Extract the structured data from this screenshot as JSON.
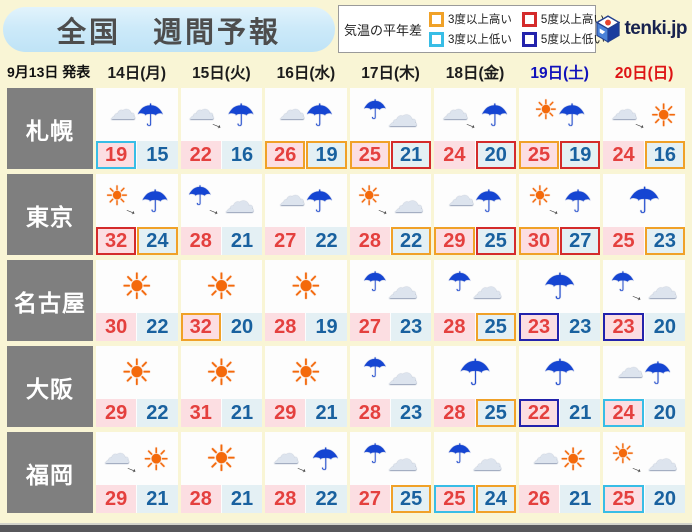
{
  "header": {
    "title": "全国　週間予報",
    "legend": {
      "label": "気温の平年差",
      "items": [
        {
          "label": "3度以上高い",
          "key": "warm3"
        },
        {
          "label": "5度以上高い",
          "key": "warm5"
        },
        {
          "label": "3度以上低い",
          "key": "cold3"
        },
        {
          "label": "5度以上低い",
          "key": "cold5"
        }
      ]
    },
    "logo_text": "tenki.jp"
  },
  "issued": "9月13日 発表",
  "days": [
    {
      "label": "14日(月)",
      "color": "#1c1c1c"
    },
    {
      "label": "15日(火)",
      "color": "#1c1c1c"
    },
    {
      "label": "16日(水)",
      "color": "#1c1c1c"
    },
    {
      "label": "17日(木)",
      "color": "#1c1c1c"
    },
    {
      "label": "18日(金)",
      "color": "#1c1c1c"
    },
    {
      "label": "19日(土)",
      "color": "#1112bb"
    },
    {
      "label": "20日(日)",
      "color": "#de1414"
    }
  ],
  "colors": {
    "warm3": "#f0a128",
    "warm5": "#d42b2b",
    "cold3": "#38bde6",
    "cold5": "#2323ac",
    "high_bg": "#fcdee2",
    "high_text": "#e4403e",
    "low_bg": "#e4f0f4",
    "low_text": "#19619f",
    "page_bg": "#f9f5d5",
    "city_bg": "#7f7f7f",
    "title_bg": "#c6e6f7"
  },
  "icon_glyphs": {
    "sun": "sun-icon",
    "cloud": "cloud-icon",
    "umbrella": "umbrella-icon",
    "arrow": "arrow-icon"
  },
  "cities": [
    {
      "name": "札幌",
      "cells": [
        {
          "icon": [
            "cloud",
            "umbrella"
          ],
          "arrow": false,
          "high": "19",
          "low": "15",
          "high_diff": "cold3",
          "low_diff": null
        },
        {
          "icon": [
            "cloud",
            "umbrella"
          ],
          "arrow": true,
          "high": "22",
          "low": "16",
          "high_diff": null,
          "low_diff": null
        },
        {
          "icon": [
            "cloud",
            "umbrella"
          ],
          "arrow": false,
          "high": "26",
          "low": "19",
          "high_diff": "warm3",
          "low_diff": "warm3"
        },
        {
          "icon": [
            "umbrella",
            "cloud"
          ],
          "arrow": false,
          "high": "25",
          "low": "21",
          "high_diff": "warm3",
          "low_diff": "warm5"
        },
        {
          "icon": [
            "cloud",
            "umbrella"
          ],
          "arrow": true,
          "high": "24",
          "low": "20",
          "high_diff": null,
          "low_diff": "warm5"
        },
        {
          "icon": [
            "sun",
            "umbrella"
          ],
          "arrow": false,
          "high": "25",
          "low": "19",
          "high_diff": "warm3",
          "low_diff": "warm5"
        },
        {
          "icon": [
            "cloud",
            "sun"
          ],
          "arrow": true,
          "high": "24",
          "low": "16",
          "high_diff": null,
          "low_diff": "warm3"
        }
      ]
    },
    {
      "name": "東京",
      "cells": [
        {
          "icon": [
            "sun",
            "umbrella"
          ],
          "arrow": true,
          "high": "32",
          "low": "24",
          "high_diff": "warm5",
          "low_diff": "warm3"
        },
        {
          "icon": [
            "umbrella",
            "cloud"
          ],
          "arrow": true,
          "high": "28",
          "low": "21",
          "high_diff": null,
          "low_diff": null
        },
        {
          "icon": [
            "cloud",
            "umbrella"
          ],
          "arrow": false,
          "high": "27",
          "low": "22",
          "high_diff": null,
          "low_diff": null
        },
        {
          "icon": [
            "sun",
            "cloud"
          ],
          "arrow": true,
          "high": "28",
          "low": "22",
          "high_diff": null,
          "low_diff": "warm3"
        },
        {
          "icon": [
            "cloud",
            "umbrella"
          ],
          "arrow": false,
          "high": "29",
          "low": "25",
          "high_diff": "warm3",
          "low_diff": "warm5"
        },
        {
          "icon": [
            "sun",
            "umbrella"
          ],
          "arrow": true,
          "high": "30",
          "low": "27",
          "high_diff": "warm3",
          "low_diff": "warm5"
        },
        {
          "icon": [
            "umbrella"
          ],
          "arrow": false,
          "high": "25",
          "low": "23",
          "high_diff": null,
          "low_diff": "warm3"
        }
      ]
    },
    {
      "name": "名古屋",
      "cells": [
        {
          "icon": [
            "sun"
          ],
          "arrow": false,
          "high": "30",
          "low": "22",
          "high_diff": null,
          "low_diff": null
        },
        {
          "icon": [
            "sun"
          ],
          "arrow": false,
          "high": "32",
          "low": "20",
          "high_diff": "warm3",
          "low_diff": null
        },
        {
          "icon": [
            "sun"
          ],
          "arrow": false,
          "high": "28",
          "low": "19",
          "high_diff": null,
          "low_diff": null
        },
        {
          "icon": [
            "umbrella",
            "cloud"
          ],
          "arrow": false,
          "high": "27",
          "low": "23",
          "high_diff": null,
          "low_diff": null
        },
        {
          "icon": [
            "umbrella",
            "cloud"
          ],
          "arrow": false,
          "high": "28",
          "low": "25",
          "high_diff": null,
          "low_diff": "warm3"
        },
        {
          "icon": [
            "umbrella"
          ],
          "arrow": false,
          "high": "23",
          "low": "23",
          "high_diff": "cold5",
          "low_diff": null
        },
        {
          "icon": [
            "umbrella",
            "cloud"
          ],
          "arrow": true,
          "high": "23",
          "low": "20",
          "high_diff": "cold5",
          "low_diff": null
        }
      ]
    },
    {
      "name": "大阪",
      "cells": [
        {
          "icon": [
            "sun"
          ],
          "arrow": false,
          "high": "29",
          "low": "22",
          "high_diff": null,
          "low_diff": null
        },
        {
          "icon": [
            "sun"
          ],
          "arrow": false,
          "high": "31",
          "low": "21",
          "high_diff": null,
          "low_diff": null
        },
        {
          "icon": [
            "sun"
          ],
          "arrow": false,
          "high": "29",
          "low": "21",
          "high_diff": null,
          "low_diff": null
        },
        {
          "icon": [
            "umbrella",
            "cloud"
          ],
          "arrow": false,
          "high": "28",
          "low": "23",
          "high_diff": null,
          "low_diff": null
        },
        {
          "icon": [
            "umbrella"
          ],
          "arrow": false,
          "high": "28",
          "low": "25",
          "high_diff": null,
          "low_diff": "warm3"
        },
        {
          "icon": [
            "umbrella"
          ],
          "arrow": false,
          "high": "22",
          "low": "21",
          "high_diff": "cold5",
          "low_diff": null
        },
        {
          "icon": [
            "cloud",
            "umbrella"
          ],
          "arrow": false,
          "high": "24",
          "low": "20",
          "high_diff": "cold3",
          "low_diff": null
        }
      ]
    },
    {
      "name": "福岡",
      "cells": [
        {
          "icon": [
            "cloud",
            "sun"
          ],
          "arrow": true,
          "high": "29",
          "low": "21",
          "high_diff": null,
          "low_diff": null
        },
        {
          "icon": [
            "sun"
          ],
          "arrow": false,
          "high": "28",
          "low": "21",
          "high_diff": null,
          "low_diff": null
        },
        {
          "icon": [
            "cloud",
            "umbrella"
          ],
          "arrow": true,
          "high": "28",
          "low": "22",
          "high_diff": null,
          "low_diff": null
        },
        {
          "icon": [
            "umbrella",
            "cloud"
          ],
          "arrow": false,
          "high": "27",
          "low": "25",
          "high_diff": null,
          "low_diff": "warm3"
        },
        {
          "icon": [
            "umbrella",
            "cloud"
          ],
          "arrow": false,
          "high": "25",
          "low": "24",
          "high_diff": "cold3",
          "low_diff": "warm3"
        },
        {
          "icon": [
            "cloud",
            "sun"
          ],
          "arrow": false,
          "high": "26",
          "low": "21",
          "high_diff": null,
          "low_diff": null
        },
        {
          "icon": [
            "sun",
            "cloud"
          ],
          "arrow": true,
          "high": "25",
          "low": "20",
          "high_diff": "cold3",
          "low_diff": null
        }
      ]
    }
  ]
}
